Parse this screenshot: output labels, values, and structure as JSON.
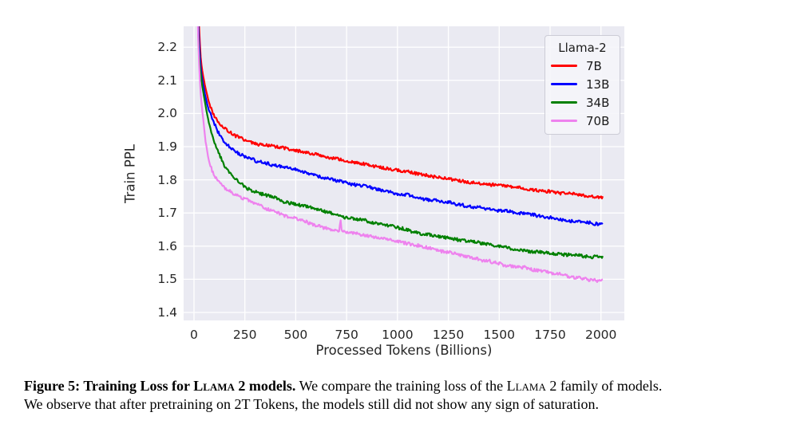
{
  "chart_data": {
    "type": "line",
    "title": "",
    "xlabel": "Processed Tokens (Billions)",
    "ylabel": "Train PPL",
    "grid": true,
    "plot_background": "#EAEAF2",
    "grid_color": "#FFFFFF",
    "xlim": [
      -51,
      2115
    ],
    "ylim": [
      1.376,
      2.263
    ],
    "xticks": [
      0,
      250,
      500,
      750,
      1000,
      1250,
      1500,
      1750,
      2000
    ],
    "yticks": [
      1.4,
      1.5,
      1.6,
      1.7,
      1.8,
      1.9,
      2.0,
      2.1,
      2.2
    ],
    "legend": {
      "title": "Llama-2",
      "position": "upper right"
    },
    "x_control_points": [
      13,
      20,
      26,
      34,
      44,
      56,
      72,
      92,
      118,
      150,
      200,
      250,
      310,
      375,
      440,
      500,
      565,
      625,
      690,
      750,
      815,
      875,
      940,
      1000,
      1065,
      1125,
      1190,
      1250,
      1315,
      1375,
      1440,
      1500,
      1565,
      1625,
      1690,
      1750,
      1815,
      1875,
      1940,
      2000
    ],
    "series": [
      {
        "name": "7B",
        "color": "#ff0000",
        "y_control_points": [
          2.6,
          2.36,
          2.24,
          2.16,
          2.115,
          2.08,
          2.04,
          2.005,
          1.978,
          1.958,
          1.935,
          1.92,
          1.908,
          1.899,
          1.891,
          1.885,
          1.877,
          1.868,
          1.86,
          1.852,
          1.845,
          1.838,
          1.831,
          1.825,
          1.818,
          1.812,
          1.806,
          1.8,
          1.795,
          1.79,
          1.785,
          1.78,
          1.775,
          1.77,
          1.765,
          1.76,
          1.756,
          1.752,
          1.748,
          1.744
        ]
      },
      {
        "name": "13B",
        "color": "#0000ff",
        "y_control_points": [
          2.55,
          2.3,
          2.2,
          2.13,
          2.09,
          2.05,
          2.012,
          1.982,
          1.942,
          1.906,
          1.882,
          1.865,
          1.852,
          1.843,
          1.835,
          1.828,
          1.82,
          1.811,
          1.801,
          1.791,
          1.783,
          1.776,
          1.768,
          1.761,
          1.754,
          1.747,
          1.74,
          1.734,
          1.728,
          1.722,
          1.716,
          1.71,
          1.704,
          1.698,
          1.692,
          1.686,
          1.68,
          1.675,
          1.67,
          1.666
        ]
      },
      {
        "name": "34B",
        "color": "#008000",
        "y_control_points": [
          2.5,
          2.26,
          2.16,
          2.115,
          2.07,
          2.028,
          1.975,
          1.93,
          1.886,
          1.843,
          1.805,
          1.78,
          1.764,
          1.75,
          1.738,
          1.729,
          1.719,
          1.709,
          1.699,
          1.689,
          1.682,
          1.675,
          1.668,
          1.661,
          1.65,
          1.641,
          1.634,
          1.628,
          1.621,
          1.614,
          1.607,
          1.601,
          1.595,
          1.59,
          1.585,
          1.58,
          1.576,
          1.572,
          1.568,
          1.565
        ]
      },
      {
        "name": "70B",
        "color": "#ee82ee",
        "y_control_points": [
          2.45,
          2.24,
          2.13,
          2.05,
          1.99,
          1.92,
          1.862,
          1.826,
          1.8,
          1.78,
          1.757,
          1.739,
          1.722,
          1.705,
          1.69,
          1.678,
          1.668,
          1.657,
          1.647,
          1.639,
          1.631,
          1.624,
          1.617,
          1.61,
          1.602,
          1.594,
          1.586,
          1.578,
          1.57,
          1.562,
          1.554,
          1.547,
          1.54,
          1.533,
          1.526,
          1.52,
          1.514,
          1.508,
          1.502,
          1.497
        ],
        "spike": {
          "x": 720,
          "amplitude": 0.042,
          "half_width": 6
        }
      }
    ],
    "line_noise_amplitude": 0.0045
  },
  "caption": {
    "line1": {
      "bold_prefix": "Figure 5: Training Loss for ",
      "bold_smallcaps": "Llama 2",
      "bold_suffix": " models.",
      "rest_prefix": " We compare the training loss of the ",
      "rest_smallcaps": "Llama 2",
      "rest_suffix": " family of models."
    },
    "line2": "We observe that after pretraining on 2T Tokens, the models still did not show any sign of saturation."
  }
}
